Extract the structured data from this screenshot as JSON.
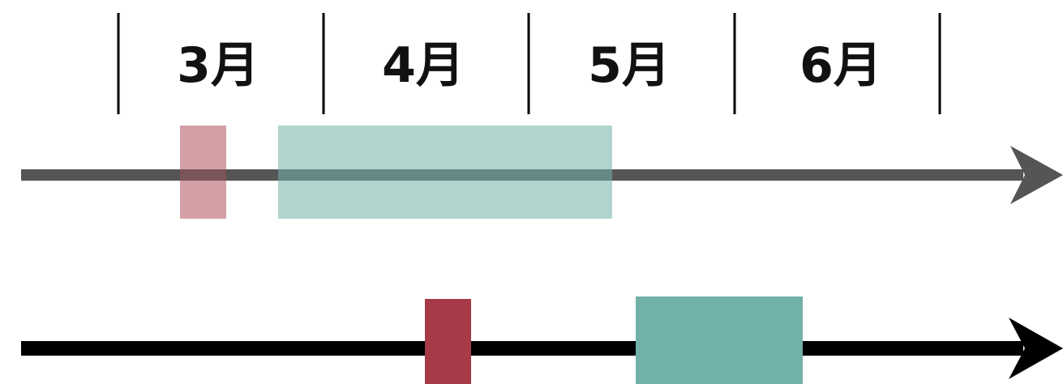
{
  "months": [
    "3月",
    "4月",
    "5月",
    "6月"
  ],
  "colors": {
    "past_track": "#555555",
    "current_track": "#000000",
    "divider": "#000000",
    "red_solid": "#a63a48",
    "teal_solid": "#72b1a7",
    "red_faded": "#d4a0a5",
    "teal_faded": "#b0d4ce"
  },
  "icons": {
    "past_arrow": "arrow-right-icon",
    "current_arrow": "arrow-right-icon"
  }
}
